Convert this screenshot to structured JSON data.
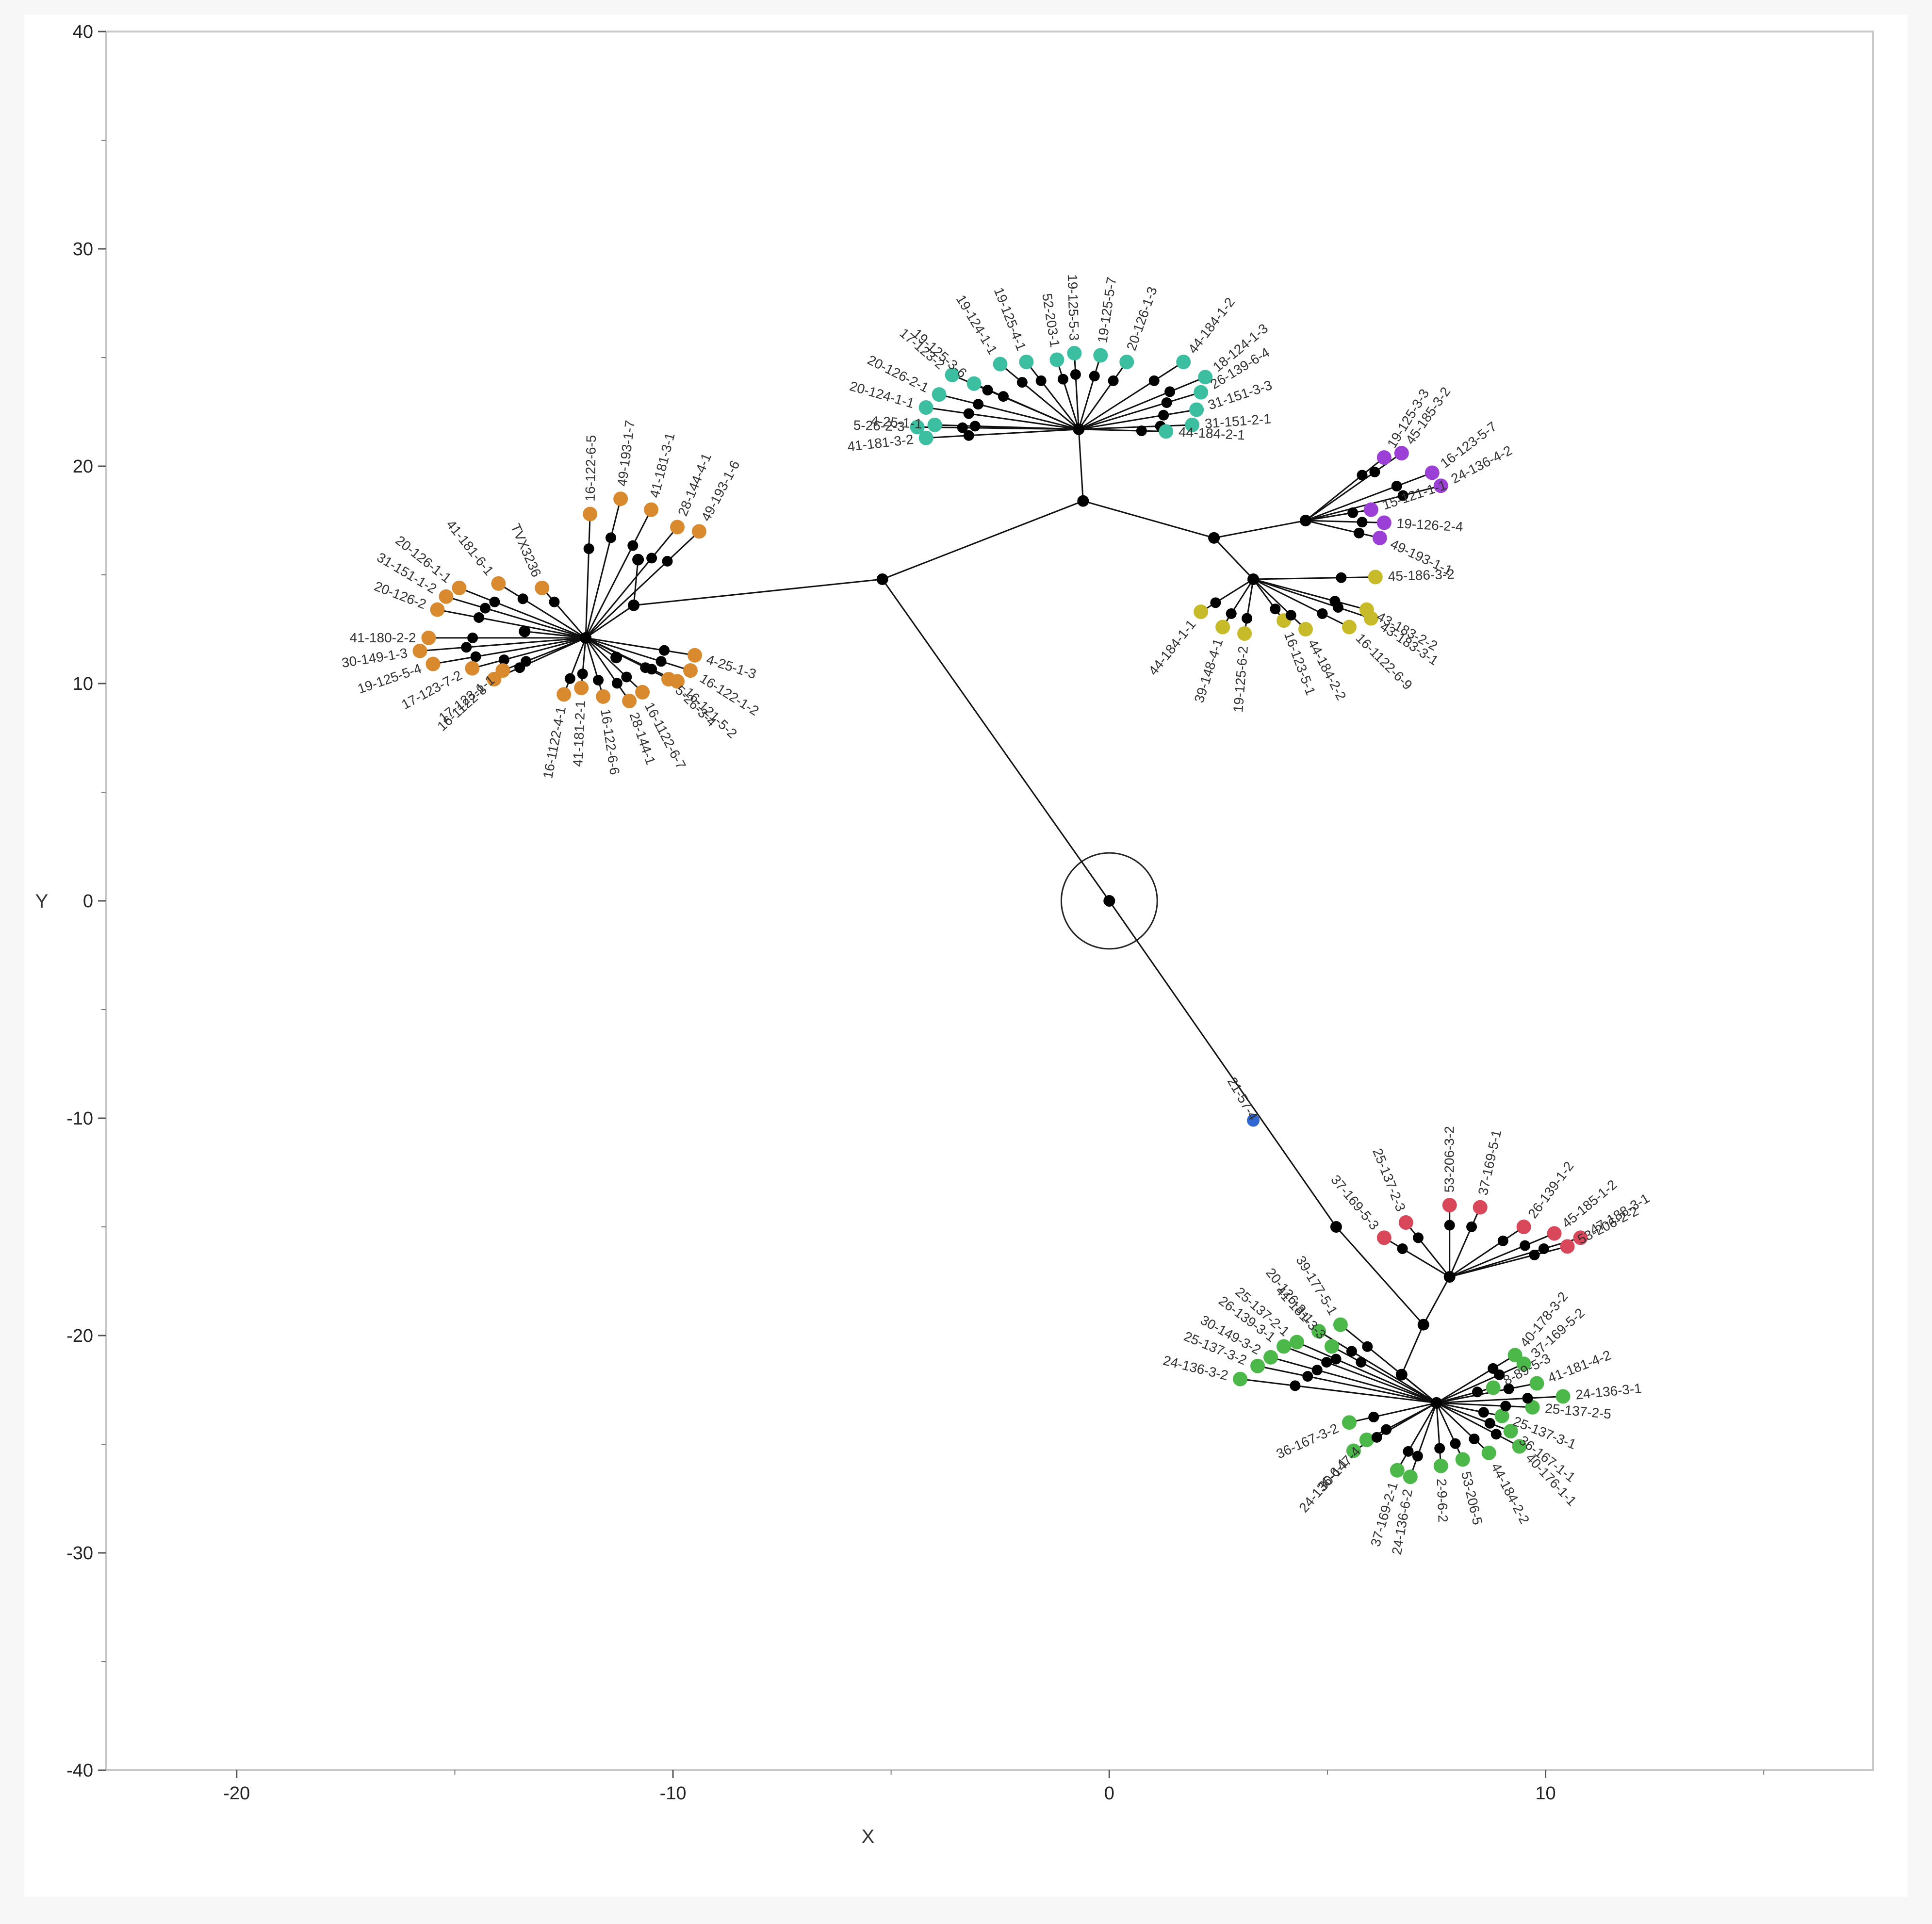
{
  "chart_data": {
    "type": "scatter",
    "title": "",
    "xlabel": "X",
    "ylabel": "Y",
    "xlim": [
      -23,
      17.5
    ],
    "ylim": [
      -40,
      40
    ],
    "x_ticks": [
      -20,
      -10,
      0,
      10
    ],
    "y_ticks": [
      40,
      30,
      20,
      10,
      0,
      -10,
      -20,
      -30,
      -40
    ],
    "grid": false,
    "legend": "none",
    "colors": {
      "edge": "#111111",
      "internal_node": "#000000",
      "orange": "#d98a2e",
      "teal": "#3bbfa0",
      "purple": "#9b3fd6",
      "yellow": "#c8bb2a",
      "red": "#d9475a",
      "green": "#4cb84a",
      "blue": "#2f66d1",
      "frame": "#c9c9c9"
    },
    "root": {
      "x": 0,
      "y": 0,
      "circle_radius": 1.1
    },
    "internal_nodes": [
      {
        "id": "A",
        "x": -5.2,
        "y": 14.8
      },
      {
        "id": "B",
        "x": -0.6,
        "y": 18.4
      },
      {
        "id": "C",
        "x": -0.7,
        "y": 21.7
      },
      {
        "id": "D",
        "x": 2.4,
        "y": 16.7
      },
      {
        "id": "E",
        "x": 4.5,
        "y": 17.5
      },
      {
        "id": "F",
        "x": 3.3,
        "y": 14.8
      },
      {
        "id": "G",
        "x": -10.9,
        "y": 13.6
      },
      {
        "id": "H",
        "x": -12.0,
        "y": 12.1
      },
      {
        "id": "I",
        "x": -10.8,
        "y": 15.7
      },
      {
        "id": "J",
        "x": -13.4,
        "y": 12.4
      },
      {
        "id": "K",
        "x": -11.3,
        "y": 11.2
      },
      {
        "id": "L",
        "x": 5.2,
        "y": -15.0
      },
      {
        "id": "M",
        "x": 7.2,
        "y": -19.5
      },
      {
        "id": "N",
        "x": 7.8,
        "y": -17.3
      },
      {
        "id": "O",
        "x": 6.7,
        "y": -21.8
      },
      {
        "id": "P",
        "x": 7.5,
        "y": -23.1
      }
    ],
    "edges": [
      [
        "root",
        "A"
      ],
      [
        "A",
        "B"
      ],
      [
        "B",
        "C"
      ],
      [
        "B",
        "D"
      ],
      [
        "D",
        "E"
      ],
      [
        "D",
        "F"
      ],
      [
        "A",
        "G"
      ],
      [
        "G",
        "H"
      ],
      [
        "G",
        "I"
      ],
      [
        "H",
        "J"
      ],
      [
        "H",
        "K"
      ],
      [
        "root",
        "L"
      ],
      [
        "L",
        "M"
      ],
      [
        "M",
        "N"
      ],
      [
        "M",
        "O"
      ],
      [
        "O",
        "P"
      ]
    ],
    "clusters": [
      {
        "color_key": "orange",
        "hub": "H",
        "points": [
          {
            "label": "41-181-6-1",
            "x": -14.0,
            "y": 14.6
          },
          {
            "label": "TVX3236",
            "x": -13.0,
            "y": 14.4
          },
          {
            "label": "20-126-1-1",
            "x": -14.9,
            "y": 14.4
          },
          {
            "label": "31-151-1-2",
            "x": -15.2,
            "y": 14.0
          },
          {
            "label": "20-126-2",
            "x": -15.4,
            "y": 13.4
          },
          {
            "label": "41-180-2-2",
            "x": -15.6,
            "y": 12.1
          },
          {
            "label": "30-149-1-3",
            "x": -15.8,
            "y": 11.5
          },
          {
            "label": "19-125-5-4",
            "x": -15.5,
            "y": 10.9
          },
          {
            "label": "17-123-7-2",
            "x": -14.6,
            "y": 10.7
          },
          {
            "label": "16-1122-8",
            "x": -14.1,
            "y": 10.2
          },
          {
            "label": "17-123-1-1",
            "x": -13.9,
            "y": 10.6
          },
          {
            "label": "16-1122-4-1",
            "x": -12.5,
            "y": 9.5
          },
          {
            "label": "41-181-2-1",
            "x": -12.1,
            "y": 9.8
          },
          {
            "label": "16-122-6-6",
            "x": -11.6,
            "y": 9.4
          },
          {
            "label": "28-144-1",
            "x": -11.0,
            "y": 9.2
          },
          {
            "label": "16-1122-6-7",
            "x": -10.7,
            "y": 9.6
          },
          {
            "label": "5-26-3-4",
            "x": -10.1,
            "y": 10.2
          },
          {
            "label": "16-122-1-2",
            "x": -9.6,
            "y": 10.6
          },
          {
            "label": "4-25-1-3",
            "x": -9.5,
            "y": 11.3
          },
          {
            "label": "16-121-5-2",
            "x": -9.9,
            "y": 10.1
          },
          {
            "label": "16-122-6-5",
            "x": -11.9,
            "y": 17.8
          },
          {
            "label": "49-193-1-7",
            "x": -11.2,
            "y": 18.5
          },
          {
            "label": "41-181-3-1",
            "x": -10.5,
            "y": 18.0
          },
          {
            "label": "28-144-4-1",
            "x": -9.9,
            "y": 17.2
          },
          {
            "label": "49-193-1-6",
            "x": -9.4,
            "y": 17.0
          }
        ]
      },
      {
        "color_key": "teal",
        "hub": "C",
        "points": [
          {
            "label": "17-123-2",
            "x": -3.6,
            "y": 24.2
          },
          {
            "label": "20-126-2-1",
            "x": -3.9,
            "y": 23.3
          },
          {
            "label": "20-124-1-1",
            "x": -4.2,
            "y": 22.7
          },
          {
            "label": "5-26-2-3",
            "x": -4.4,
            "y": 21.8
          },
          {
            "label": "41-181-3-2",
            "x": -4.2,
            "y": 21.3
          },
          {
            "label": "4-25-1-1",
            "x": -4.0,
            "y": 21.9
          },
          {
            "label": "19-125-3-6",
            "x": -3.1,
            "y": 23.8
          },
          {
            "label": "19-124-1-1",
            "x": -2.5,
            "y": 24.7
          },
          {
            "label": "19-125-4-1",
            "x": -1.9,
            "y": 24.8
          },
          {
            "label": "52-203-1",
            "x": -1.2,
            "y": 24.9
          },
          {
            "label": "19-125-5-3",
            "x": -0.8,
            "y": 25.2
          },
          {
            "label": "19-125-5-7",
            "x": -0.2,
            "y": 25.1
          },
          {
            "label": "20-126-1-3",
            "x": 0.4,
            "y": 24.8
          },
          {
            "label": "44-184-1-2",
            "x": 1.7,
            "y": 24.8
          },
          {
            "label": "18-124-1-3",
            "x": 2.2,
            "y": 24.1
          },
          {
            "label": "26-139-6-4",
            "x": 2.1,
            "y": 23.4
          },
          {
            "label": "31-151-3-3",
            "x": 2.0,
            "y": 22.6
          },
          {
            "label": "31-151-2-1",
            "x": 1.9,
            "y": 21.9
          },
          {
            "label": "44-184-2-1",
            "x": 1.3,
            "y": 21.6
          }
        ]
      },
      {
        "color_key": "purple",
        "hub": "E",
        "points": [
          {
            "label": "19-125-3-3",
            "x": 6.3,
            "y": 20.4
          },
          {
            "label": "45-185-3-2",
            "x": 6.7,
            "y": 20.6
          },
          {
            "label": "16-123-5-7",
            "x": 7.4,
            "y": 19.7
          },
          {
            "label": "24-136-4-2",
            "x": 7.6,
            "y": 19.1
          },
          {
            "label": "15-121-1-1",
            "x": 6.0,
            "y": 18.0
          },
          {
            "label": "19-126-2-4",
            "x": 6.3,
            "y": 17.4
          },
          {
            "label": "49-193-1-1",
            "x": 6.2,
            "y": 16.7
          }
        ]
      },
      {
        "color_key": "yellow",
        "hub": "F",
        "points": [
          {
            "label": "44-184-1-1",
            "x": 2.1,
            "y": 13.3
          },
          {
            "label": "39-148-4-1",
            "x": 2.6,
            "y": 12.6
          },
          {
            "label": "19-125-6-2",
            "x": 3.1,
            "y": 12.3
          },
          {
            "label": "16-123-5-1",
            "x": 4.0,
            "y": 12.9
          },
          {
            "label": "44-184-2-2",
            "x": 4.5,
            "y": 12.5
          },
          {
            "label": "43-183-2-2",
            "x": 5.9,
            "y": 13.4
          },
          {
            "label": "45-186-3-2",
            "x": 6.1,
            "y": 14.9
          },
          {
            "label": "43-183-3-1",
            "x": 6.0,
            "y": 13.0
          },
          {
            "label": "16-1122-6-9",
            "x": 5.5,
            "y": 12.6
          }
        ]
      },
      {
        "color_key": "red",
        "hub": "N",
        "points": [
          {
            "label": "37-169-5-3",
            "x": 6.3,
            "y": -15.5
          },
          {
            "label": "25-137-2-3",
            "x": 6.8,
            "y": -14.8
          },
          {
            "label": "53-206-3-2",
            "x": 7.8,
            "y": -14.0
          },
          {
            "label": "37-169-5-1",
            "x": 8.5,
            "y": -14.1
          },
          {
            "label": "26-139-1-2",
            "x": 9.5,
            "y": -15.0
          },
          {
            "label": "45-185-1-2",
            "x": 10.2,
            "y": -15.3
          },
          {
            "label": "47-188-3-1",
            "x": 10.8,
            "y": -15.5
          },
          {
            "label": "53-206-2-2",
            "x": 10.5,
            "y": -15.9
          }
        ]
      },
      {
        "color_key": "green",
        "hub": "P",
        "points": [
          {
            "label": "24-136-3-2",
            "x": 3.0,
            "y": -22.0
          },
          {
            "label": "25-137-3-2",
            "x": 3.4,
            "y": -21.4
          },
          {
            "label": "30-149-3-2",
            "x": 3.7,
            "y": -21.0
          },
          {
            "label": "26-139-3-1",
            "x": 4.0,
            "y": -20.5
          },
          {
            "label": "25-137-2-1",
            "x": 4.3,
            "y": -20.3
          },
          {
            "label": "20-126-3-1",
            "x": 4.8,
            "y": -19.8
          },
          {
            "label": "39-177-5-1",
            "x": 5.3,
            "y": -19.5
          },
          {
            "label": "41-181-3-3",
            "x": 5.1,
            "y": -20.5
          },
          {
            "label": "36-167-3-2",
            "x": 5.5,
            "y": -24.0
          },
          {
            "label": "30-147-4",
            "x": 5.9,
            "y": -24.8
          },
          {
            "label": "24-136-6-1",
            "x": 5.6,
            "y": -25.3
          },
          {
            "label": "37-169-2-1",
            "x": 6.6,
            "y": -26.2
          },
          {
            "label": "24-136-6-2",
            "x": 6.9,
            "y": -26.5
          },
          {
            "label": "2-9-6-2",
            "x": 7.6,
            "y": -26.0
          },
          {
            "label": "53-206-5",
            "x": 8.1,
            "y": -25.7
          },
          {
            "label": "44-184-2-2",
            "x": 8.7,
            "y": -25.4
          },
          {
            "label": "40-176-1-1",
            "x": 9.4,
            "y": -25.1
          },
          {
            "label": "36-167-1-1",
            "x": 9.2,
            "y": -24.4
          },
          {
            "label": "25-137-3-1",
            "x": 9.0,
            "y": -23.7
          },
          {
            "label": "25-137-2-5",
            "x": 9.7,
            "y": -23.3
          },
          {
            "label": "24-136-3-1",
            "x": 10.4,
            "y": -22.8
          },
          {
            "label": "41-181-4-2",
            "x": 9.8,
            "y": -22.2
          },
          {
            "label": "37-169-5-2",
            "x": 9.5,
            "y": -21.3
          },
          {
            "label": "40-178-3-2",
            "x": 9.3,
            "y": -20.9
          },
          {
            "label": "8-89-5-3",
            "x": 8.8,
            "y": -22.4
          }
        ]
      }
    ],
    "blue_point": {
      "label": "21-57-4",
      "x": 3.3,
      "y": -10.1
    }
  }
}
